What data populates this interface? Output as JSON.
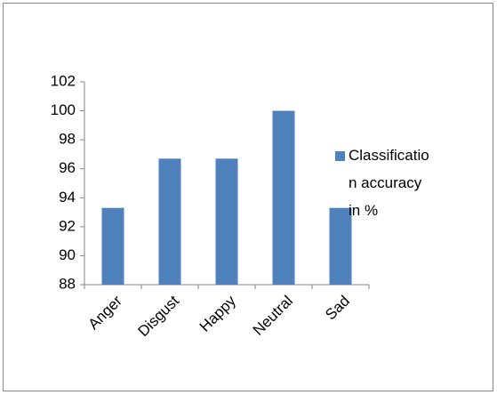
{
  "chart_data": {
    "type": "bar",
    "categories": [
      "Anger",
      "Disgust",
      "Happy",
      "Neutral",
      "Sad"
    ],
    "series": [
      {
        "name": "Classification accuracy in %",
        "color": "#4f81bd",
        "values": [
          93.3,
          96.7,
          96.7,
          100,
          93.3
        ]
      }
    ],
    "ylim": [
      88,
      102
    ],
    "yticks": [
      88,
      90,
      92,
      94,
      96,
      98,
      100,
      102
    ],
    "grid": false,
    "legend": "right"
  }
}
